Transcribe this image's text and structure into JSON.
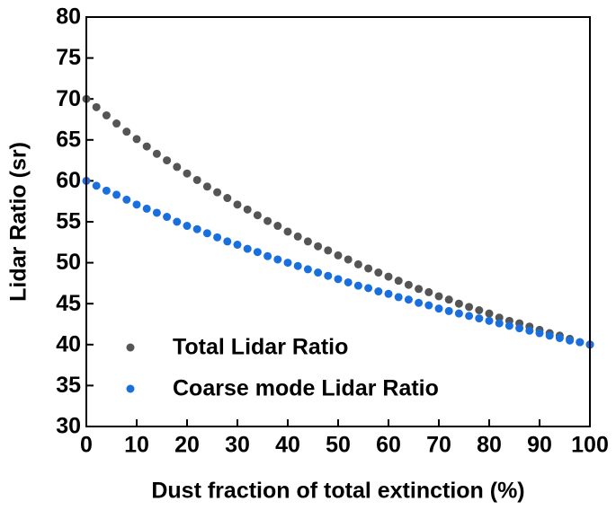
{
  "chart_data": {
    "type": "scatter",
    "xlabel": "Dust fraction of total extinction (%)",
    "ylabel": "Lidar Ratio (sr)",
    "x": [
      0,
      2,
      4,
      6,
      8,
      10,
      12,
      14,
      16,
      18,
      20,
      22,
      24,
      26,
      28,
      30,
      32,
      34,
      36,
      38,
      40,
      42,
      44,
      46,
      48,
      50,
      52,
      54,
      56,
      58,
      60,
      62,
      64,
      66,
      68,
      70,
      72,
      74,
      76,
      78,
      80,
      82,
      84,
      86,
      88,
      90,
      92,
      94,
      96,
      98,
      100
    ],
    "series": [
      {
        "name": "Total Lidar Ratio",
        "color": "#555555",
        "values": [
          70.0,
          69.0,
          68.0,
          67.0,
          66.0,
          65.1,
          64.2,
          63.3,
          62.5,
          61.7,
          60.9,
          60.1,
          59.3,
          58.6,
          57.9,
          57.1,
          56.5,
          55.8,
          55.1,
          54.5,
          53.8,
          53.2,
          52.6,
          52.0,
          51.5,
          50.9,
          50.4,
          49.8,
          49.3,
          48.8,
          48.3,
          47.8,
          47.3,
          46.8,
          46.4,
          45.9,
          45.5,
          45.0,
          44.6,
          44.2,
          43.8,
          43.3,
          42.9,
          42.6,
          42.2,
          41.8,
          41.4,
          41.1,
          40.7,
          40.3,
          40.0
        ]
      },
      {
        "name": "Coarse mode Lidar Ratio",
        "color": "#1a6fdf",
        "values": [
          60.0,
          59.4,
          58.8,
          58.3,
          57.7,
          57.1,
          56.6,
          56.1,
          55.6,
          55.0,
          54.5,
          54.1,
          53.6,
          53.1,
          52.6,
          52.2,
          51.7,
          51.3,
          50.8,
          50.4,
          50.0,
          49.6,
          49.2,
          48.8,
          48.4,
          48.0,
          47.6,
          47.2,
          46.9,
          46.5,
          46.2,
          45.8,
          45.5,
          45.1,
          44.8,
          44.4,
          44.1,
          43.8,
          43.5,
          43.2,
          42.9,
          42.6,
          42.3,
          42.0,
          41.7,
          41.4,
          41.1,
          40.8,
          40.5,
          40.3,
          40.0
        ]
      }
    ],
    "xlim": [
      0,
      100
    ],
    "xticks": [
      0,
      10,
      20,
      30,
      40,
      50,
      60,
      70,
      80,
      90,
      100
    ],
    "ylim": [
      30,
      80
    ],
    "yticks": [
      30,
      35,
      40,
      45,
      50,
      55,
      60,
      65,
      70,
      75,
      80
    ],
    "legend": "lower left"
  }
}
